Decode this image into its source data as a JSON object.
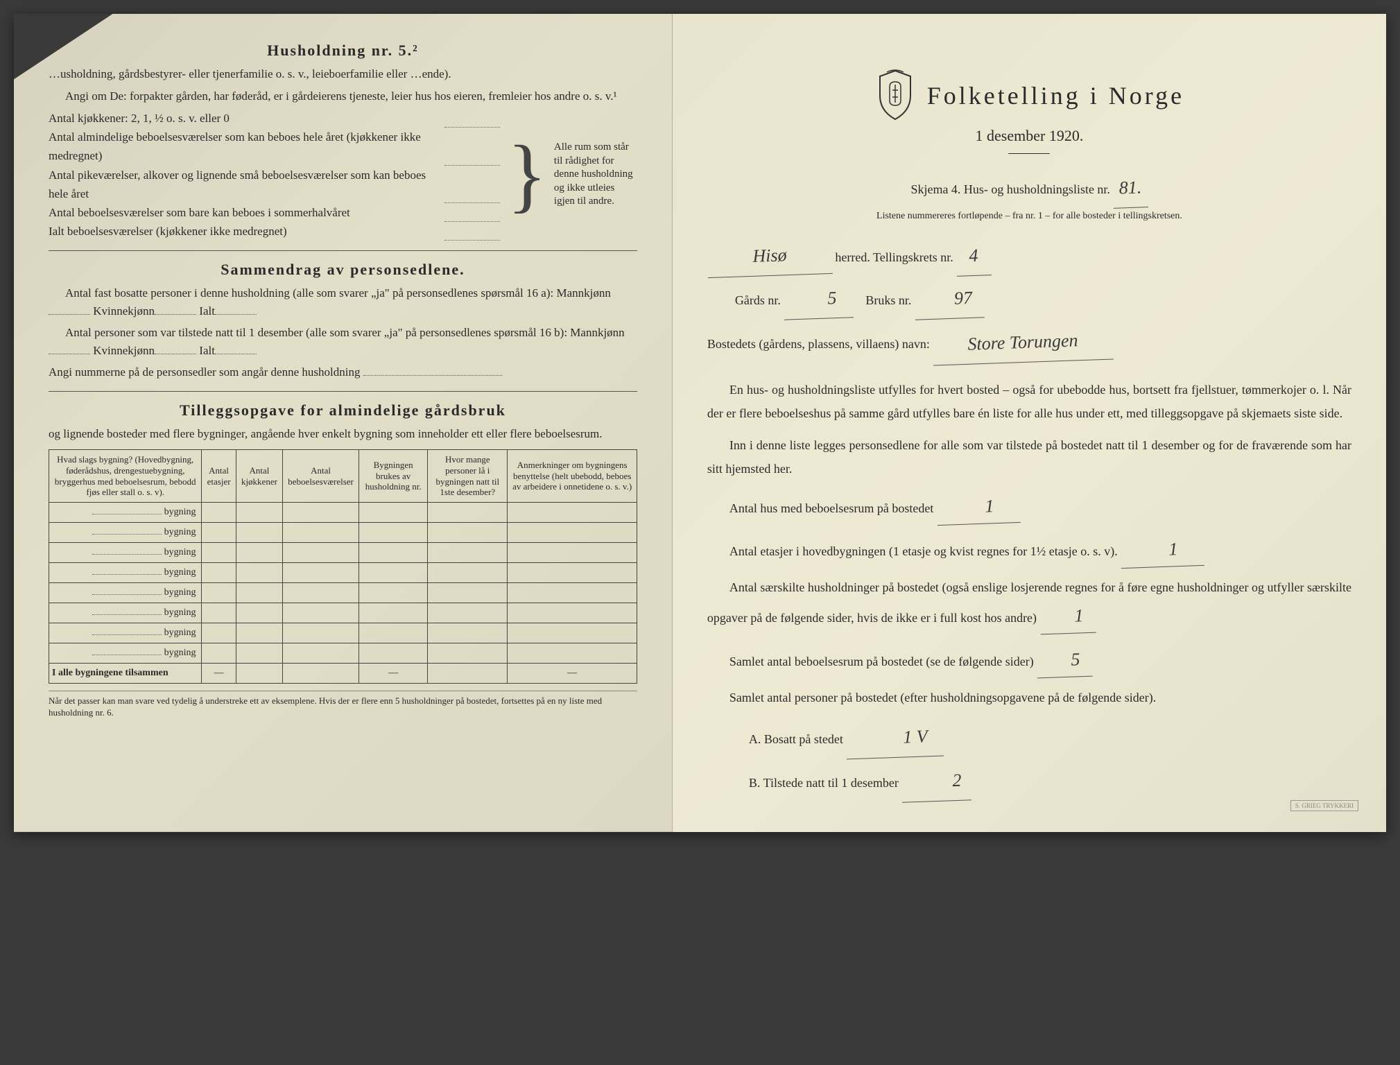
{
  "left": {
    "husholdning_title": "Husholdning nr. 5.²",
    "intro_line1": "…usholdning, gårdsbestyrer- eller tjenerfamilie o. s. v., leieboerfamilie eller …ende).",
    "intro_line2": "Angi om De: forpakter gården, har føderåd, er i gårdeierens tjeneste, leier hus hos eieren, fremleier hos andre o. s. v.¹",
    "rooms": [
      "Antal kjøkkener: 2, 1, ½ o. s. v. eller 0",
      "Antal almindelige beboelsesværelser som kan beboes hele året (kjøkkener ikke medregnet)",
      "Antal pikeværelser, alkover og lignende små beboelsesværelser som kan beboes hele året",
      "Antal beboelsesværelser som bare kan beboes i sommerhalvåret",
      "Ialt beboelsesværelser (kjøkkener ikke medregnet)"
    ],
    "brace_note": "Alle rum som står til rådighet for denne husholdning og ikke utleies igjen til andre.",
    "sammendrag_title": "Sammendrag av personsedlene.",
    "sammendrag_l1": "Antal fast bosatte personer i denne husholdning (alle som svarer „ja\" på personsedlenes spørsmål 16 a): Mannkjønn",
    "sammendrag_kv": "Kvinnekjønn",
    "sammendrag_ialt": "Ialt",
    "sammendrag_l2": "Antal personer som var tilstede natt til 1 desember (alle som svarer „ja\" på personsedlenes spørsmål 16 b): Mannkjønn",
    "sammendrag_l3": "Angi nummerne på de personsedler som angår denne husholdning",
    "tillegg_title": "Tilleggsopgave for almindelige gårdsbruk",
    "tillegg_sub": "og lignende bosteder med flere bygninger, angående hver enkelt bygning som inneholder ett eller flere beboelsesrum.",
    "table": {
      "headers": [
        "Hvad slags bygning?\n(Hovedbygning, føderådshus, drengestuebygning, bryggerhus med beboelsesrum, bebodd fjøs eller stall o. s. v).",
        "Antal etasjer",
        "Antal kjøkkener",
        "Antal beboelsesværelser",
        "Bygningen brukes av husholdning nr.",
        "Hvor mange personer lå i bygningen natt til 1ste desember?",
        "Anmerkninger om bygningens benyttelse (helt ubebodd, beboes av arbeidere i onnetidene o. s. v.)"
      ],
      "row_label": "bygning",
      "row_count": 8,
      "total_label": "I alle bygningene tilsammen"
    },
    "footnote": "Når det passer kan man svare ved tydelig å understreke ett av eksemplene.\nHvis der er flere enn 5 husholdninger på bostedet, fortsettes på en ny liste med husholdning nr. 6."
  },
  "right": {
    "main_title": "Folketelling i Norge",
    "subtitle": "1 desember 1920.",
    "skjema_line": "Skjema 4.  Hus- og husholdningsliste nr.",
    "skjema_nr": "81.",
    "list_note": "Listene nummereres fortløpende – fra nr. 1 – for alle bosteder i tellingskretsen.",
    "herred_value": "Hisø",
    "herred_label": "herred.  Tellingskrets nr.",
    "tellingskrets_nr": "4",
    "gards_label": "Gårds nr.",
    "gards_nr": "5",
    "bruks_label": "Bruks nr.",
    "bruks_nr": "97",
    "bosted_label": "Bostedets (gårdens, plassens, villaens) navn:",
    "bosted_value": "Store Torungen",
    "para1": "En hus- og husholdningsliste utfylles for hvert bosted – også for ubebodde hus, bortsett fra fjellstuer, tømmerkojer o. l.  Når der er flere beboelseshus på samme gård utfylles bare én liste for alle hus under ett, med tilleggsopgave på skjemaets siste side.",
    "para2": "Inn i denne liste legges personsedlene for alle som var tilstede på bostedet natt til 1 desember og for de fraværende som har sitt hjemsted her.",
    "q1_label": "Antal hus med beboelsesrum på bostedet",
    "q1_val": "1",
    "q2_label_a": "Antal etasjer i hovedbygningen (1 etasje og kvist regnes for 1½ etasje o. s. v).",
    "q2_val": "1",
    "q3_label": "Antal særskilte husholdninger på bostedet (også enslige losjerende regnes for å føre egne husholdninger og utfyller særskilte opgaver på de følgende sider, hvis de ikke er i full kost hos andre)",
    "q3_val": "1",
    "q4_label": "Samlet antal beboelsesrum på bostedet (se de følgende sider)",
    "q4_val": "5",
    "q5_label": "Samlet antal personer på bostedet (efter husholdningsopgavene på de følgende sider).",
    "q5a_label": "A.  Bosatt på stedet",
    "q5a_val": "1 V",
    "q5b_label": "B.  Tilstede natt til 1 desember",
    "q5b_val": "2",
    "stamp": "S. GRIEG TRYKKERI"
  },
  "colors": {
    "paper_left": "#dcd8c2",
    "paper_right": "#eae5cf",
    "ink": "#2a2a2a",
    "hand_ink": "#3a3a3a"
  }
}
